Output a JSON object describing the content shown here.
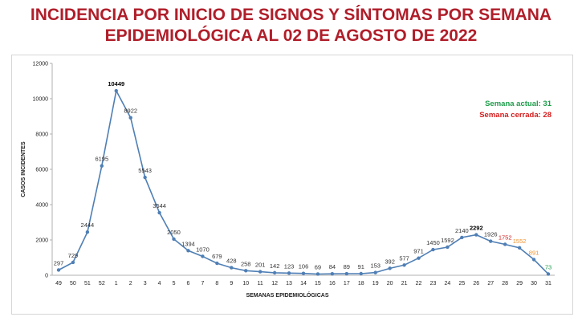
{
  "title": {
    "line1": "INCIDENCIA POR INICIO DE SIGNOS Y SÍNTOMAS POR SEMANA",
    "line2": "EPIDEMIOLÓGICA AL 02 DE AGOSTO DE 2022"
  },
  "info": {
    "current_week": "Semana actual: 31",
    "closed_week": "Semana cerrada: 28"
  },
  "colors": {
    "title": "#b01e2a",
    "line": "#4f7fb5",
    "current_week": "#1e9c4a",
    "closed_week": "#d42020",
    "peak_label": "#000000",
    "provisional_orange": "#f0922b",
    "last_point_green": "#1e9c4a"
  },
  "chart_data": {
    "type": "line",
    "xlabel": "SEMANAS EPIDEMIOLÓGICAS",
    "ylabel": "CASOS INCIDENTES",
    "ylim": [
      0,
      12000
    ],
    "yticks": [
      0,
      2000,
      4000,
      6000,
      8000,
      10000,
      12000
    ],
    "grid": false,
    "categories": [
      "49",
      "50",
      "51",
      "52",
      "1",
      "2",
      "3",
      "4",
      "5",
      "6",
      "7",
      "8",
      "9",
      "10",
      "11",
      "12",
      "13",
      "14",
      "15",
      "16",
      "17",
      "18",
      "19",
      "20",
      "21",
      "22",
      "23",
      "24",
      "25",
      "26",
      "27",
      "28",
      "29",
      "30",
      "31"
    ],
    "values": [
      297,
      729,
      2444,
      6195,
      10449,
      8922,
      5543,
      3544,
      2050,
      1394,
      1070,
      679,
      428,
      258,
      201,
      142,
      123,
      106,
      69,
      84,
      89,
      91,
      153,
      392,
      577,
      971,
      1450,
      1592,
      2140,
      2292,
      1926,
      1752,
      1552,
      891,
      73
    ],
    "label_colors": [
      "#333",
      "#333",
      "#333",
      "#333",
      "#000",
      "#333",
      "#333",
      "#333",
      "#333",
      "#333",
      "#333",
      "#333",
      "#333",
      "#333",
      "#333",
      "#333",
      "#333",
      "#333",
      "#333",
      "#333",
      "#333",
      "#333",
      "#333",
      "#333",
      "#333",
      "#333",
      "#333",
      "#333",
      "#333",
      "#000",
      "#333",
      "#d42020",
      "#f0922b",
      "#f0922b",
      "#1e9c4a"
    ],
    "label_bold": [
      false,
      false,
      false,
      false,
      true,
      false,
      false,
      false,
      false,
      false,
      false,
      false,
      false,
      false,
      false,
      false,
      false,
      false,
      false,
      false,
      false,
      false,
      false,
      false,
      false,
      false,
      false,
      false,
      false,
      true,
      false,
      false,
      false,
      false,
      false
    ]
  }
}
